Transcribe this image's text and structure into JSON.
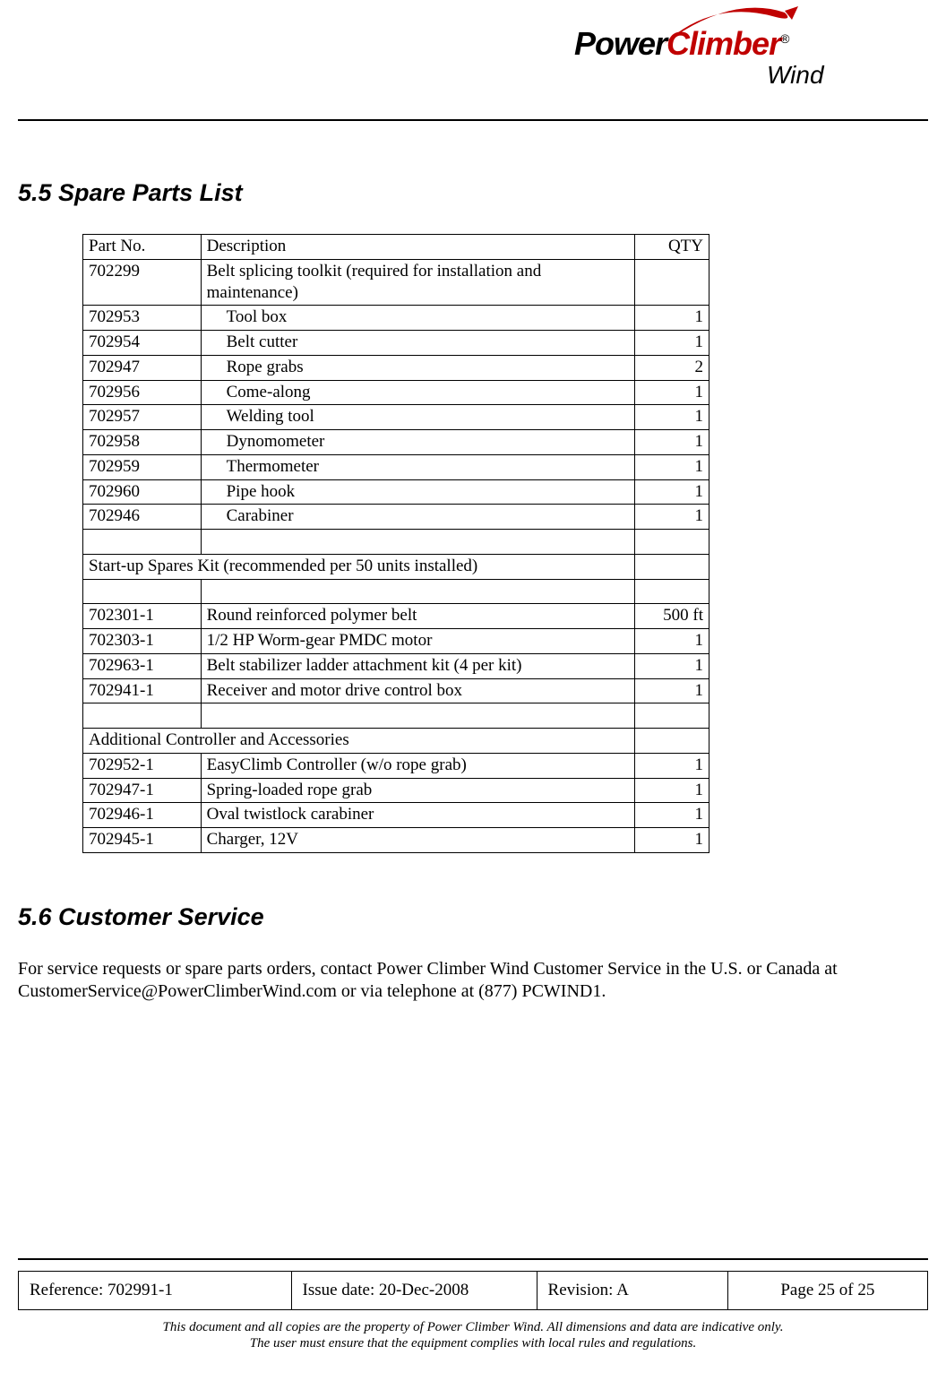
{
  "logo": {
    "word1": "Power",
    "word2": "Climber",
    "reg": "®",
    "sub": "Wind",
    "colors": {
      "power": "#000000",
      "climber": "#c00000",
      "swoosh": "#c00000"
    }
  },
  "section1": {
    "heading": "5.5 Spare Parts List",
    "columns": [
      "Part No.",
      "Description",
      "QTY"
    ],
    "rows": [
      {
        "pn": "702299",
        "desc": "Belt splicing toolkit (required for installation and maintenance)",
        "qty": "",
        "indent": false
      },
      {
        "pn": "702953",
        "desc": "Tool box",
        "qty": "1",
        "indent": true
      },
      {
        "pn": "702954",
        "desc": "Belt cutter",
        "qty": "1",
        "indent": true
      },
      {
        "pn": "702947",
        "desc": "Rope grabs",
        "qty": "2",
        "indent": true
      },
      {
        "pn": "702956",
        "desc": "Come-along",
        "qty": "1",
        "indent": true
      },
      {
        "pn": "702957",
        "desc": "Welding tool",
        "qty": "1",
        "indent": true
      },
      {
        "pn": "702958",
        "desc": "Dynomometer",
        "qty": "1",
        "indent": true
      },
      {
        "pn": "702959",
        "desc": "Thermometer",
        "qty": "1",
        "indent": true
      },
      {
        "pn": "702960",
        "desc": "Pipe hook",
        "qty": "1",
        "indent": true
      },
      {
        "pn": "702946",
        "desc": "Carabiner",
        "qty": "1",
        "indent": true
      },
      {
        "pn": "",
        "desc": "",
        "qty": "",
        "indent": false
      },
      {
        "span": true,
        "desc": "Start-up Spares Kit (recommended per 50 units installed)",
        "qty": ""
      },
      {
        "pn": "",
        "desc": "",
        "qty": "",
        "indent": false
      },
      {
        "pn": "702301-1",
        "desc": "Round reinforced polymer belt",
        "qty": "500 ft",
        "indent": false
      },
      {
        "pn": "702303-1",
        "desc": "1/2 HP Worm-gear PMDC motor",
        "qty": "1",
        "indent": false
      },
      {
        "pn": "702963-1",
        "desc": "Belt stabilizer ladder attachment kit (4 per kit)",
        "qty": "1",
        "indent": false
      },
      {
        "pn": "702941-1",
        "desc": "Receiver and motor drive control box",
        "qty": "1",
        "indent": false
      },
      {
        "pn": "",
        "desc": "",
        "qty": "",
        "indent": false
      },
      {
        "span": true,
        "desc": "Additional Controller and Accessories",
        "qty": ""
      },
      {
        "pn": "702952-1",
        "desc": "EasyClimb Controller (w/o rope grab)",
        "qty": "1",
        "indent": false
      },
      {
        "pn": "702947-1",
        "desc": "Spring-loaded rope grab",
        "qty": "1",
        "indent": false
      },
      {
        "pn": "702946-1",
        "desc": "Oval twistlock carabiner",
        "qty": "1",
        "indent": false
      },
      {
        "pn": "702945-1",
        "desc": "Charger, 12V",
        "qty": "1",
        "indent": false
      }
    ]
  },
  "section2": {
    "heading": "5.6 Customer Service",
    "body": "For service requests or spare parts orders, contact Power Climber Wind Customer Service in the U.S. or Canada at CustomerService@PowerClimberWind.com or via telephone at (877) PCWIND1."
  },
  "footer": {
    "reference": "Reference: 702991-1",
    "issue": "Issue date: 20-Dec-2008",
    "revision": "Revision: A",
    "page": "Page 25 of 25",
    "disclaimer1": "This document and all copies are the property of Power Climber Wind.  All dimensions and data are indicative only.",
    "disclaimer2": "The user must ensure that the equipment complies with local rules and regulations."
  }
}
